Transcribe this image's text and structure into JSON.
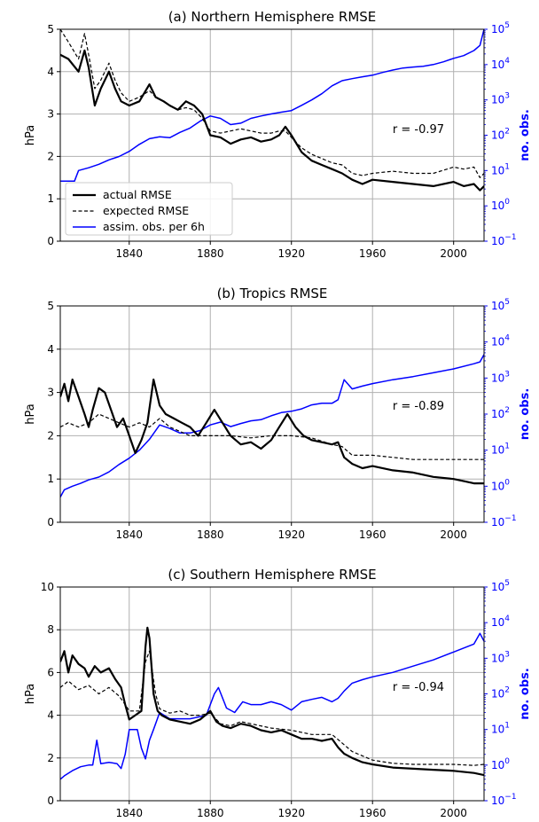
{
  "chart_data": [
    {
      "type": "line",
      "title": "(a) Northern Hemisphere RMSE",
      "ylabel": "hPa",
      "ylabel_right": "no. obs.",
      "xlim": [
        1806,
        2015
      ],
      "ylim": [
        0,
        5
      ],
      "yticks": [
        0,
        1,
        2,
        3,
        4,
        5
      ],
      "y2_log": true,
      "y2ticks": [
        "10−1",
        "100",
        "101",
        "102",
        "103",
        "104",
        "105"
      ],
      "xticks": [
        1840,
        1880,
        1920,
        1960,
        2000
      ],
      "grid": true,
      "annotation": "r = -0.97",
      "legend": {
        "location": "lower-left",
        "entries": [
          "actual RMSE",
          "expected RMSE",
          "assim. obs. per 6h"
        ]
      },
      "series": [
        {
          "name": "actual RMSE",
          "color": "#000000",
          "style": "solid",
          "x": [
            1806,
            1810,
            1815,
            1818,
            1820,
            1823,
            1826,
            1830,
            1833,
            1836,
            1840,
            1845,
            1850,
            1853,
            1857,
            1860,
            1864,
            1868,
            1872,
            1876,
            1880,
            1885,
            1890,
            1895,
            1900,
            1905,
            1910,
            1914,
            1917,
            1920,
            1925,
            1930,
            1935,
            1940,
            1945,
            1950,
            1955,
            1960,
            1970,
            1980,
            1990,
            2000,
            2005,
            2010,
            2013,
            2015
          ],
          "y": [
            4.4,
            4.3,
            4.0,
            4.5,
            4.1,
            3.2,
            3.6,
            4.0,
            3.6,
            3.3,
            3.2,
            3.3,
            3.7,
            3.4,
            3.3,
            3.2,
            3.1,
            3.3,
            3.2,
            3.0,
            2.5,
            2.45,
            2.3,
            2.4,
            2.45,
            2.35,
            2.4,
            2.5,
            2.7,
            2.5,
            2.1,
            1.9,
            1.8,
            1.7,
            1.6,
            1.45,
            1.35,
            1.45,
            1.4,
            1.35,
            1.3,
            1.4,
            1.3,
            1.35,
            1.2,
            1.3
          ]
        },
        {
          "name": "expected RMSE",
          "color": "#000000",
          "style": "dashed",
          "x": [
            1806,
            1810,
            1815,
            1818,
            1820,
            1823,
            1826,
            1830,
            1833,
            1836,
            1840,
            1845,
            1850,
            1853,
            1857,
            1860,
            1864,
            1868,
            1872,
            1876,
            1880,
            1885,
            1890,
            1895,
            1900,
            1905,
            1910,
            1914,
            1917,
            1920,
            1925,
            1930,
            1935,
            1940,
            1945,
            1950,
            1955,
            1960,
            1970,
            1980,
            1990,
            2000,
            2005,
            2010,
            2013,
            2015
          ],
          "y": [
            5.0,
            4.7,
            4.3,
            4.9,
            4.4,
            3.6,
            3.8,
            4.2,
            3.8,
            3.5,
            3.3,
            3.4,
            3.55,
            3.4,
            3.3,
            3.2,
            3.1,
            3.15,
            3.1,
            2.9,
            2.6,
            2.55,
            2.6,
            2.65,
            2.6,
            2.55,
            2.55,
            2.6,
            2.6,
            2.45,
            2.2,
            2.05,
            1.95,
            1.85,
            1.8,
            1.6,
            1.55,
            1.6,
            1.65,
            1.6,
            1.6,
            1.75,
            1.7,
            1.75,
            1.5,
            1.6
          ]
        },
        {
          "name": "assim. obs. per 6h",
          "color": "#0000ff",
          "style": "solid",
          "axis": "right",
          "x": [
            1806,
            1810,
            1813,
            1815,
            1820,
            1825,
            1830,
            1835,
            1840,
            1845,
            1850,
            1855,
            1860,
            1865,
            1870,
            1875,
            1880,
            1885,
            1890,
            1895,
            1900,
            1905,
            1910,
            1915,
            1920,
            1925,
            1930,
            1935,
            1940,
            1945,
            1950,
            1955,
            1960,
            1965,
            1970,
            1975,
            1980,
            1985,
            1990,
            1995,
            2000,
            2005,
            2010,
            2013,
            2015
          ],
          "y": [
            5,
            5,
            5,
            10,
            12,
            15,
            20,
            25,
            35,
            55,
            80,
            90,
            85,
            120,
            160,
            250,
            350,
            300,
            200,
            220,
            300,
            350,
            400,
            450,
            500,
            700,
            1000,
            1500,
            2500,
            3500,
            4000,
            4500,
            5000,
            6000,
            7000,
            8000,
            8500,
            9000,
            10000,
            12000,
            15000,
            18000,
            25000,
            35000,
            100000
          ]
        }
      ]
    },
    {
      "type": "line",
      "title": "(b) Tropics RMSE",
      "ylabel": "hPa",
      "ylabel_right": "no. obs.",
      "xlim": [
        1806,
        2015
      ],
      "ylim": [
        0,
        5
      ],
      "yticks": [
        0,
        1,
        2,
        3,
        4,
        5
      ],
      "y2_log": true,
      "y2ticks": [
        "10−1",
        "100",
        "101",
        "102",
        "103",
        "104",
        "105"
      ],
      "xticks": [
        1840,
        1880,
        1920,
        1960,
        2000
      ],
      "grid": true,
      "annotation": "r = -0.89",
      "series": [
        {
          "name": "actual RMSE",
          "color": "#000000",
          "style": "solid",
          "x": [
            1806,
            1808,
            1810,
            1812,
            1815,
            1818,
            1820,
            1822,
            1825,
            1828,
            1831,
            1834,
            1837,
            1840,
            1843,
            1846,
            1849,
            1852,
            1855,
            1858,
            1862,
            1866,
            1870,
            1874,
            1878,
            1882,
            1886,
            1890,
            1895,
            1900,
            1905,
            1910,
            1914,
            1918,
            1922,
            1926,
            1930,
            1935,
            1940,
            1943,
            1946,
            1950,
            1955,
            1960,
            1970,
            1980,
            1990,
            2000,
            2005,
            2010,
            2015
          ],
          "y": [
            2.9,
            3.2,
            2.8,
            3.3,
            2.9,
            2.5,
            2.2,
            2.6,
            3.1,
            3.0,
            2.6,
            2.2,
            2.4,
            2.0,
            1.6,
            1.9,
            2.3,
            3.3,
            2.7,
            2.5,
            2.4,
            2.3,
            2.2,
            2.0,
            2.3,
            2.6,
            2.3,
            2.0,
            1.8,
            1.85,
            1.7,
            1.9,
            2.2,
            2.5,
            2.2,
            2.0,
            1.9,
            1.85,
            1.8,
            1.85,
            1.5,
            1.35,
            1.25,
            1.3,
            1.2,
            1.15,
            1.05,
            1.0,
            0.95,
            0.9,
            0.9
          ]
        },
        {
          "name": "expected RMSE",
          "color": "#000000",
          "style": "dashed",
          "x": [
            1806,
            1810,
            1815,
            1820,
            1825,
            1830,
            1835,
            1840,
            1845,
            1850,
            1855,
            1860,
            1870,
            1880,
            1890,
            1900,
            1910,
            1920,
            1930,
            1940,
            1945,
            1950,
            1960,
            1970,
            1980,
            1990,
            2000,
            2010,
            2015
          ],
          "y": [
            2.2,
            2.3,
            2.2,
            2.3,
            2.5,
            2.4,
            2.3,
            2.2,
            2.3,
            2.2,
            2.4,
            2.2,
            2.0,
            2.0,
            2.0,
            1.95,
            2.0,
            2.0,
            1.95,
            1.8,
            1.75,
            1.55,
            1.55,
            1.5,
            1.45,
            1.45,
            1.45,
            1.45,
            1.45
          ]
        },
        {
          "name": "assim. obs. per 6h",
          "color": "#0000ff",
          "style": "solid",
          "axis": "right",
          "x": [
            1806,
            1808,
            1812,
            1816,
            1820,
            1825,
            1830,
            1835,
            1840,
            1845,
            1850,
            1855,
            1860,
            1865,
            1870,
            1875,
            1880,
            1885,
            1890,
            1895,
            1900,
            1905,
            1910,
            1915,
            1920,
            1925,
            1930,
            1935,
            1940,
            1943,
            1946,
            1950,
            1955,
            1960,
            1970,
            1980,
            1990,
            2000,
            2010,
            2013,
            2015
          ],
          "y": [
            0.5,
            0.8,
            1.0,
            1.2,
            1.5,
            1.8,
            2.5,
            4,
            6,
            10,
            20,
            50,
            40,
            30,
            30,
            35,
            50,
            60,
            45,
            55,
            65,
            70,
            90,
            110,
            120,
            140,
            180,
            200,
            200,
            250,
            900,
            500,
            600,
            700,
            900,
            1100,
            1400,
            1800,
            2500,
            2800,
            4500
          ]
        }
      ]
    },
    {
      "type": "line",
      "title": "(c) Southern Hemisphere RMSE",
      "ylabel": "hPa",
      "ylabel_right": "no. obs.",
      "xlim": [
        1806,
        2015
      ],
      "ylim": [
        0,
        10
      ],
      "yticks": [
        0,
        2,
        4,
        6,
        8,
        10
      ],
      "y2_log": true,
      "y2ticks": [
        "10−1",
        "100",
        "101",
        "102",
        "103",
        "104",
        "105"
      ],
      "xticks": [
        1840,
        1880,
        1920,
        1960,
        2000
      ],
      "grid": true,
      "annotation": "r = -0.94",
      "series": [
        {
          "name": "actual RMSE",
          "color": "#000000",
          "style": "solid",
          "x": [
            1806,
            1808,
            1810,
            1812,
            1815,
            1818,
            1820,
            1823,
            1826,
            1830,
            1833,
            1836,
            1838,
            1840,
            1843,
            1846,
            1848,
            1849,
            1850,
            1852,
            1854,
            1856,
            1860,
            1865,
            1870,
            1875,
            1880,
            1883,
            1886,
            1890,
            1895,
            1900,
            1905,
            1910,
            1915,
            1920,
            1925,
            1930,
            1935,
            1940,
            1943,
            1946,
            1950,
            1955,
            1960,
            1970,
            1980,
            1990,
            2000,
            2010,
            2015
          ],
          "y": [
            6.5,
            7.0,
            6.0,
            6.8,
            6.4,
            6.2,
            5.8,
            6.3,
            6.0,
            6.2,
            5.7,
            5.3,
            4.5,
            3.8,
            4.0,
            4.2,
            7.2,
            8.1,
            7.6,
            5.0,
            4.2,
            4.0,
            3.8,
            3.7,
            3.6,
            3.8,
            4.2,
            3.7,
            3.5,
            3.4,
            3.6,
            3.5,
            3.3,
            3.2,
            3.3,
            3.1,
            2.9,
            2.9,
            2.8,
            2.9,
            2.5,
            2.2,
            2.0,
            1.8,
            1.7,
            1.55,
            1.5,
            1.45,
            1.4,
            1.3,
            1.2
          ]
        },
        {
          "name": "expected RMSE",
          "color": "#000000",
          "style": "dashed",
          "x": [
            1806,
            1810,
            1815,
            1820,
            1825,
            1830,
            1835,
            1838,
            1840,
            1845,
            1848,
            1850,
            1853,
            1855,
            1860,
            1865,
            1870,
            1875,
            1880,
            1885,
            1890,
            1895,
            1900,
            1910,
            1920,
            1930,
            1940,
            1945,
            1950,
            1960,
            1970,
            1980,
            1990,
            2000,
            2010,
            2015
          ],
          "y": [
            5.3,
            5.6,
            5.2,
            5.4,
            5.0,
            5.3,
            4.9,
            4.5,
            4.2,
            4.2,
            6.5,
            7.0,
            5.0,
            4.3,
            4.1,
            4.2,
            4.0,
            4.0,
            4.1,
            3.6,
            3.5,
            3.7,
            3.6,
            3.4,
            3.3,
            3.1,
            3.1,
            2.7,
            2.3,
            1.9,
            1.75,
            1.7,
            1.7,
            1.7,
            1.65,
            1.7
          ]
        },
        {
          "name": "assim. obs. per 6h",
          "color": "#0000ff",
          "style": "solid",
          "axis": "right",
          "x": [
            1806,
            1808,
            1812,
            1816,
            1820,
            1822,
            1824,
            1826,
            1830,
            1834,
            1836,
            1838,
            1840,
            1844,
            1846,
            1848,
            1850,
            1852,
            1855,
            1860,
            1870,
            1878,
            1882,
            1884,
            1888,
            1892,
            1896,
            1900,
            1905,
            1910,
            1915,
            1920,
            1925,
            1930,
            1935,
            1940,
            1943,
            1946,
            1950,
            1955,
            1960,
            1970,
            1980,
            1990,
            2000,
            2010,
            2013,
            2015
          ],
          "y": [
            0.4,
            0.5,
            0.7,
            0.9,
            1.0,
            1.0,
            5.0,
            1.1,
            1.2,
            1.1,
            0.8,
            2.0,
            10,
            10,
            3.0,
            1.5,
            5,
            10,
            30,
            20,
            20,
            25,
            100,
            150,
            40,
            30,
            60,
            50,
            50,
            60,
            50,
            35,
            60,
            70,
            80,
            60,
            75,
            120,
            200,
            250,
            300,
            400,
            600,
            900,
            1500,
            2500,
            5000,
            3000
          ]
        }
      ]
    }
  ]
}
